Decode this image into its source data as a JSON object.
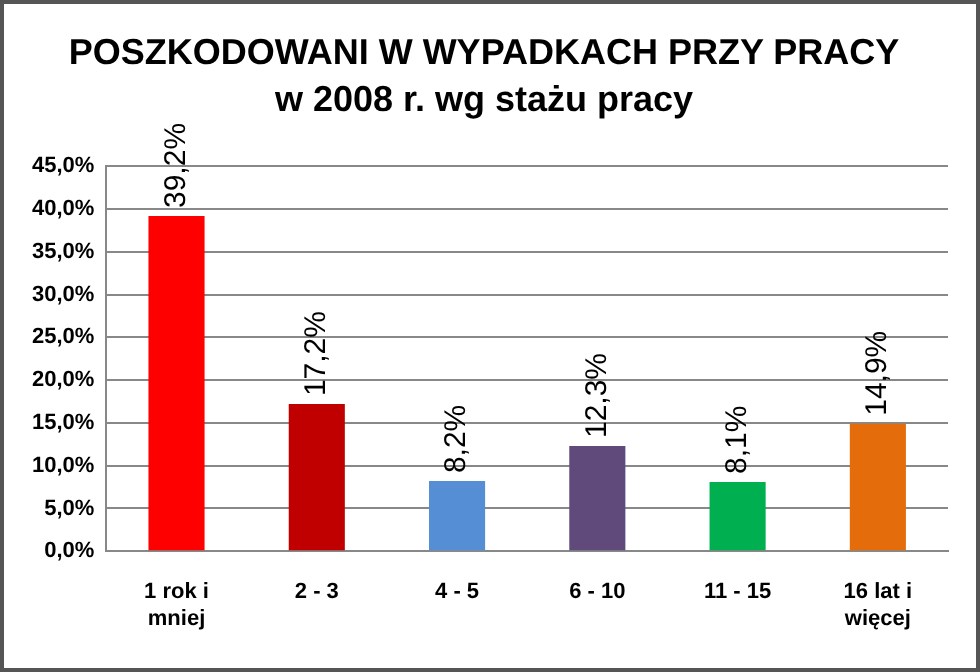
{
  "chart_data": {
    "type": "bar",
    "title": "POSZKODOWANI W WYPADKACH PRZY PRACY",
    "subtitle": "w 2008 r. wg stażu pracy",
    "categories": [
      "1 rok i\nmniej",
      "2 - 3",
      "4 - 5",
      "6 - 10",
      "11 - 15",
      "16 lat i\nwięcej"
    ],
    "values": [
      39.2,
      17.2,
      8.2,
      12.3,
      8.1,
      14.9
    ],
    "colors": [
      "#ff0000",
      "#c00000",
      "#558ed5",
      "#604a7b",
      "#00b050",
      "#e46c0a"
    ],
    "value_labels": [
      "39,2%",
      "17,2%",
      "8,2%",
      "12,3%",
      "8,1%",
      "14,9%"
    ],
    "ylim": [
      0,
      45
    ],
    "yticks": [
      {
        "value": 0,
        "label": "0,0%"
      },
      {
        "value": 5,
        "label": "5,0%"
      },
      {
        "value": 10,
        "label": "10,0%"
      },
      {
        "value": 15,
        "label": "15,0%"
      },
      {
        "value": 20,
        "label": "20,0%"
      },
      {
        "value": 25,
        "label": "25,0%"
      },
      {
        "value": 30,
        "label": "30,0%"
      },
      {
        "value": 35,
        "label": "35,0%"
      },
      {
        "value": 40,
        "label": "40,0%"
      },
      {
        "value": 45,
        "label": "45,0%"
      }
    ],
    "grid": "y",
    "legend": false
  }
}
